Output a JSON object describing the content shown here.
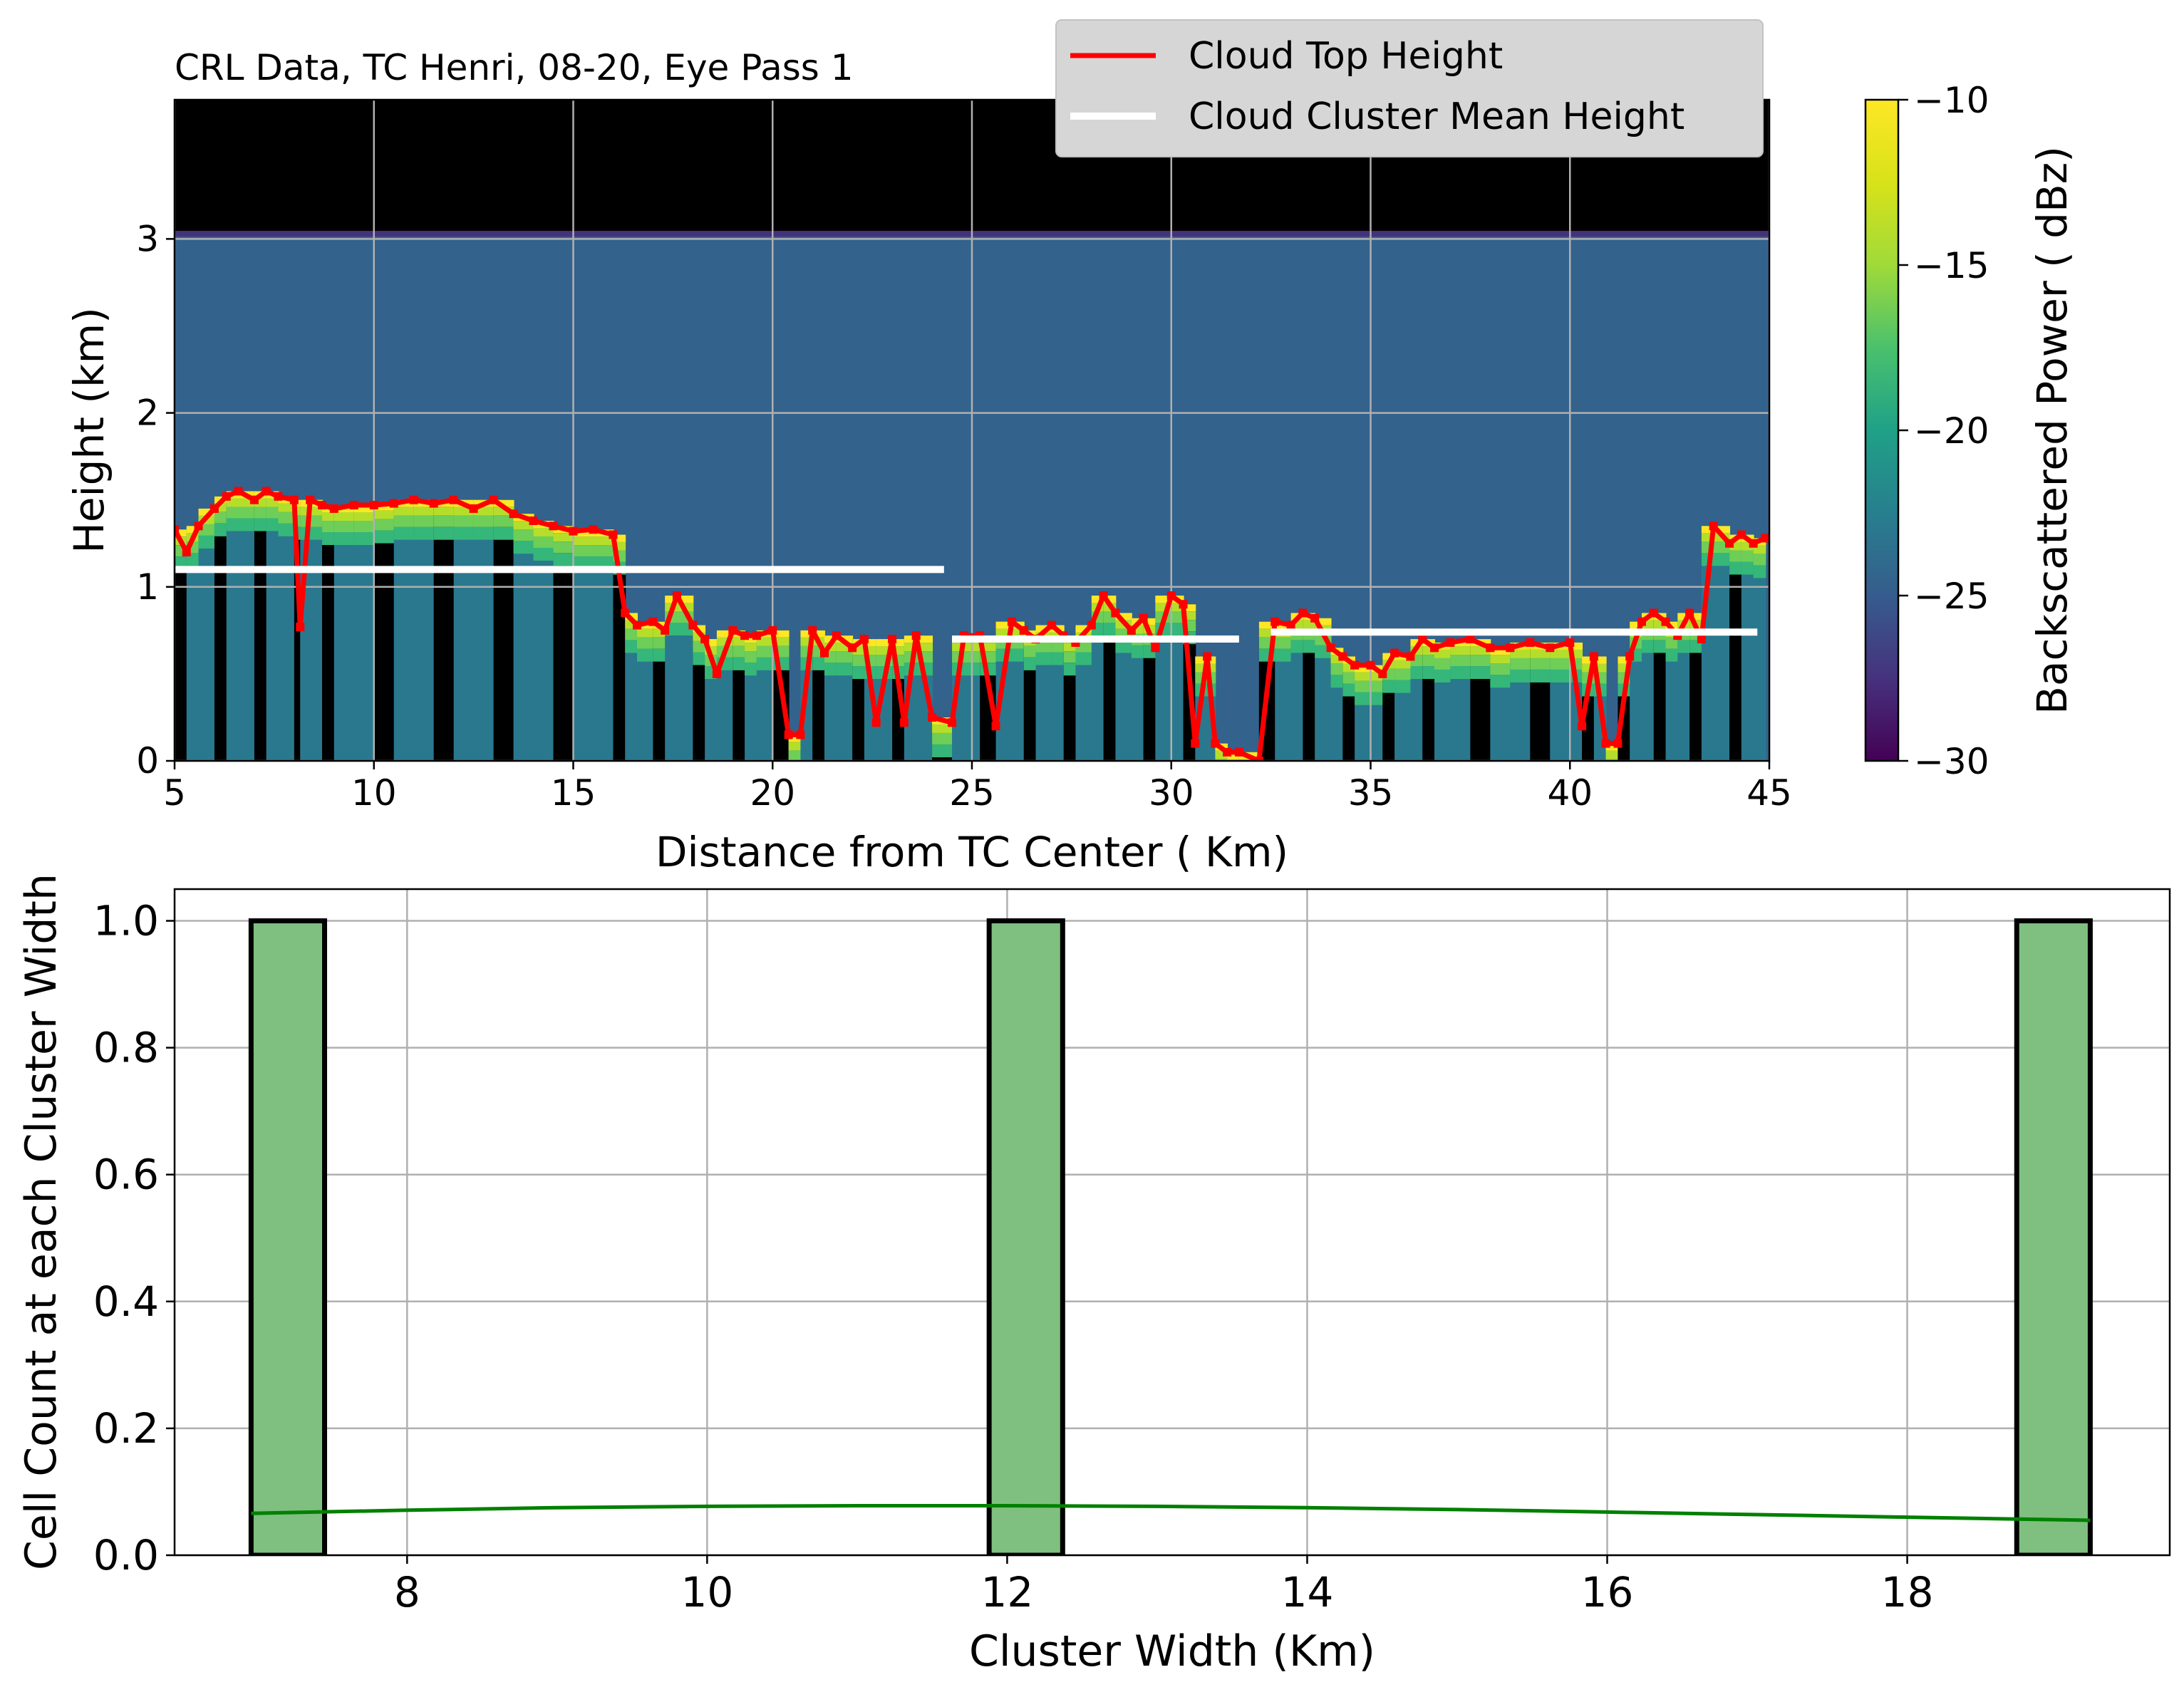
{
  "chart_data": [
    {
      "type": "heatmap",
      "title": "CRL Data, TC Henri, 08-20, Eye Pass 1",
      "xlabel": "Distance from TC Center ( Km)",
      "ylabel": "Height (km)",
      "xlim": [
        5,
        45
      ],
      "ylim": [
        0,
        3.8
      ],
      "xticks": [
        5,
        10,
        15,
        20,
        25,
        30,
        35,
        40,
        45
      ],
      "yticks": [
        0,
        1,
        2,
        3
      ],
      "grid": true,
      "colorbar": {
        "label": "Backscattered Power ( dBz)",
        "ticks": [
          -30,
          -25,
          -20,
          -15,
          -10
        ],
        "range": [
          -30,
          -10
        ],
        "colormap": "viridis"
      },
      "legend": {
        "placement": "top-right",
        "entries": [
          {
            "label": "Cloud Top Height",
            "color": "#ff0000"
          },
          {
            "label": "Cloud Cluster Mean Height",
            "color": "#ffffff"
          }
        ]
      },
      "background_top_km": 3.03,
      "cloud_top_height": {
        "x": [
          5.0,
          5.3,
          5.6,
          6.0,
          6.3,
          6.6,
          7.0,
          7.3,
          7.6,
          8.0,
          8.15,
          8.4,
          8.7,
          9.0,
          9.5,
          10.0,
          10.5,
          11.0,
          11.5,
          12.0,
          12.5,
          13.0,
          13.5,
          14.0,
          14.5,
          15.0,
          15.5,
          16.0,
          16.3,
          16.6,
          17.0,
          17.3,
          17.6,
          18.0,
          18.3,
          18.6,
          19.0,
          19.3,
          19.6,
          20.0,
          20.4,
          20.7,
          21.0,
          21.3,
          21.6,
          22.0,
          22.3,
          22.6,
          23.0,
          23.3,
          23.6,
          24.0,
          24.5,
          24.8,
          25.2,
          25.6,
          26.0,
          26.3,
          26.6,
          27.0,
          27.3,
          27.6,
          28.0,
          28.3,
          28.6,
          29.0,
          29.3,
          29.6,
          30.0,
          30.3,
          30.6,
          30.9,
          31.1,
          31.4,
          31.7,
          32.2,
          32.6,
          33.0,
          33.3,
          33.6,
          34.0,
          34.3,
          34.6,
          35.0,
          35.3,
          35.6,
          36.0,
          36.3,
          36.6,
          37.0,
          37.5,
          38.0,
          38.5,
          39.0,
          39.5,
          40.0,
          40.3,
          40.6,
          40.9,
          41.2,
          41.5,
          41.8,
          42.1,
          42.4,
          42.7,
          43.0,
          43.3,
          43.6,
          44.0,
          44.3,
          44.6,
          44.9
        ],
        "y": [
          1.33,
          1.2,
          1.35,
          1.45,
          1.52,
          1.55,
          1.5,
          1.55,
          1.52,
          1.5,
          0.77,
          1.5,
          1.47,
          1.45,
          1.47,
          1.47,
          1.48,
          1.5,
          1.48,
          1.5,
          1.45,
          1.5,
          1.42,
          1.38,
          1.35,
          1.32,
          1.33,
          1.3,
          0.85,
          0.78,
          0.8,
          0.75,
          0.95,
          0.78,
          0.7,
          0.5,
          0.75,
          0.72,
          0.72,
          0.75,
          0.15,
          0.15,
          0.75,
          0.62,
          0.72,
          0.65,
          0.7,
          0.22,
          0.7,
          0.22,
          0.72,
          0.25,
          0.22,
          0.72,
          0.72,
          0.2,
          0.8,
          0.75,
          0.7,
          0.78,
          0.72,
          0.68,
          0.78,
          0.95,
          0.85,
          0.75,
          0.82,
          0.65,
          0.95,
          0.9,
          0.1,
          0.6,
          0.1,
          0.05,
          0.05,
          0.0,
          0.8,
          0.78,
          0.85,
          0.82,
          0.65,
          0.6,
          0.55,
          0.55,
          0.5,
          0.62,
          0.6,
          0.7,
          0.65,
          0.68,
          0.7,
          0.65,
          0.65,
          0.68,
          0.65,
          0.68,
          0.2,
          0.6,
          0.1,
          0.1,
          0.6,
          0.8,
          0.85,
          0.8,
          0.72,
          0.85,
          0.7,
          1.35,
          1.25,
          1.3,
          1.25,
          1.28
        ]
      },
      "cluster_mean_height": [
        {
          "x_start": 5.0,
          "x_end": 24.3,
          "y": 1.1
        },
        {
          "x_start": 24.5,
          "x_end": 31.7,
          "y": 0.7
        },
        {
          "x_start": 32.5,
          "x_end": 44.7,
          "y": 0.74
        }
      ]
    },
    {
      "type": "bar",
      "title": "",
      "xlabel": "Cluster Width (Km)",
      "ylabel": "Cell Count at each Cluster Width",
      "xlim": [
        6.45,
        19.75
      ],
      "ylim": [
        0,
        1.05
      ],
      "xticks": [
        8,
        10,
        12,
        14,
        16,
        18
      ],
      "yticks": [
        "0.0",
        "0.2",
        "0.4",
        "0.6",
        "0.8",
        "1.0"
      ],
      "grid": true,
      "bar_color": "#7fbf7f",
      "edge_color": "#000000",
      "bars": [
        {
          "x_start": 6.96,
          "x_end": 7.45,
          "value": 1.0
        },
        {
          "x_start": 11.88,
          "x_end": 12.37,
          "value": 1.0
        },
        {
          "x_start": 18.73,
          "x_end": 19.22,
          "value": 1.0
        }
      ],
      "kde": {
        "color": "#008000",
        "x": [
          6.96,
          8.0,
          9.0,
          10.0,
          11.0,
          12.0,
          13.0,
          14.0,
          15.0,
          16.0,
          17.0,
          18.0,
          19.22
        ],
        "y": [
          0.066,
          0.071,
          0.075,
          0.077,
          0.078,
          0.078,
          0.077,
          0.075,
          0.072,
          0.068,
          0.064,
          0.06,
          0.055
        ]
      }
    }
  ]
}
